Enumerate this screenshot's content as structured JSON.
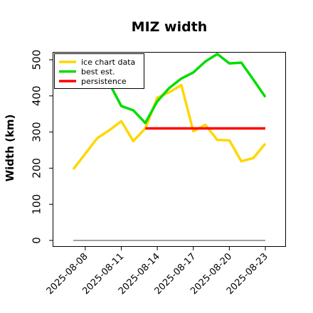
{
  "chart_data": {
    "type": "line",
    "title": "MIZ width",
    "xlabel": "",
    "ylabel": "Width (km)",
    "x": [
      "2025-08-07",
      "2025-08-08",
      "2025-08-09",
      "2025-08-10",
      "2025-08-11",
      "2025-08-12",
      "2025-08-13",
      "2025-08-14",
      "2025-08-15",
      "2025-08-16",
      "2025-08-17",
      "2025-08-18",
      "2025-08-19",
      "2025-08-20",
      "2025-08-21",
      "2025-08-22",
      "2025-08-23"
    ],
    "x_range": [
      "2025-08-06",
      "2025-08-23"
    ],
    "x_ticks": [
      "2025-08-08",
      "2025-08-11",
      "2025-08-14",
      "2025-08-17",
      "2025-08-20",
      "2025-08-23"
    ],
    "ylim": [
      -10,
      525
    ],
    "y_ticks": [
      0,
      100,
      200,
      300,
      400,
      500
    ],
    "grid": false,
    "legend": "top-left",
    "series": [
      {
        "name": "ice chart data",
        "color": "#FFD700",
        "values": [
          197,
          240,
          283,
          305,
          330,
          275,
          310,
          395,
          410,
          430,
          302,
          320,
          278,
          277,
          219,
          228,
          268
        ]
      },
      {
        "name": "best est.",
        "color": "#00DD00",
        "values": [
          null,
          null,
          null,
          435,
          372,
          360,
          325,
          385,
          422,
          448,
          465,
          495,
          516,
          490,
          492,
          445,
          397
        ]
      },
      {
        "name": "persistence",
        "color": "#FF0000",
        "values": [
          null,
          null,
          null,
          null,
          null,
          null,
          310,
          310,
          310,
          310,
          310,
          310,
          310,
          310,
          310,
          310,
          310
        ]
      }
    ],
    "baseline": {
      "value": 0,
      "color": "#808080"
    }
  }
}
